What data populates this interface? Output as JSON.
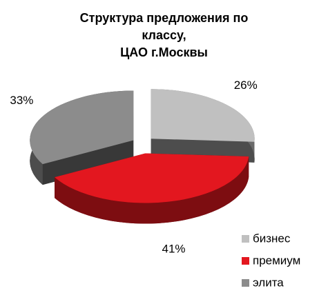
{
  "chart_data": {
    "type": "pie3d",
    "title": [
      "Структура предложения по",
      "классу,",
      "ЦАО г.Москвы"
    ],
    "categories": [
      "бизнес",
      "премиум",
      "элита"
    ],
    "values": [
      26,
      41,
      33
    ],
    "value_labels": [
      "26%",
      "41%",
      "33%"
    ],
    "colors": [
      "#c0c0c0",
      "#e3171f",
      "#8c8c8c"
    ],
    "legend": "right"
  }
}
